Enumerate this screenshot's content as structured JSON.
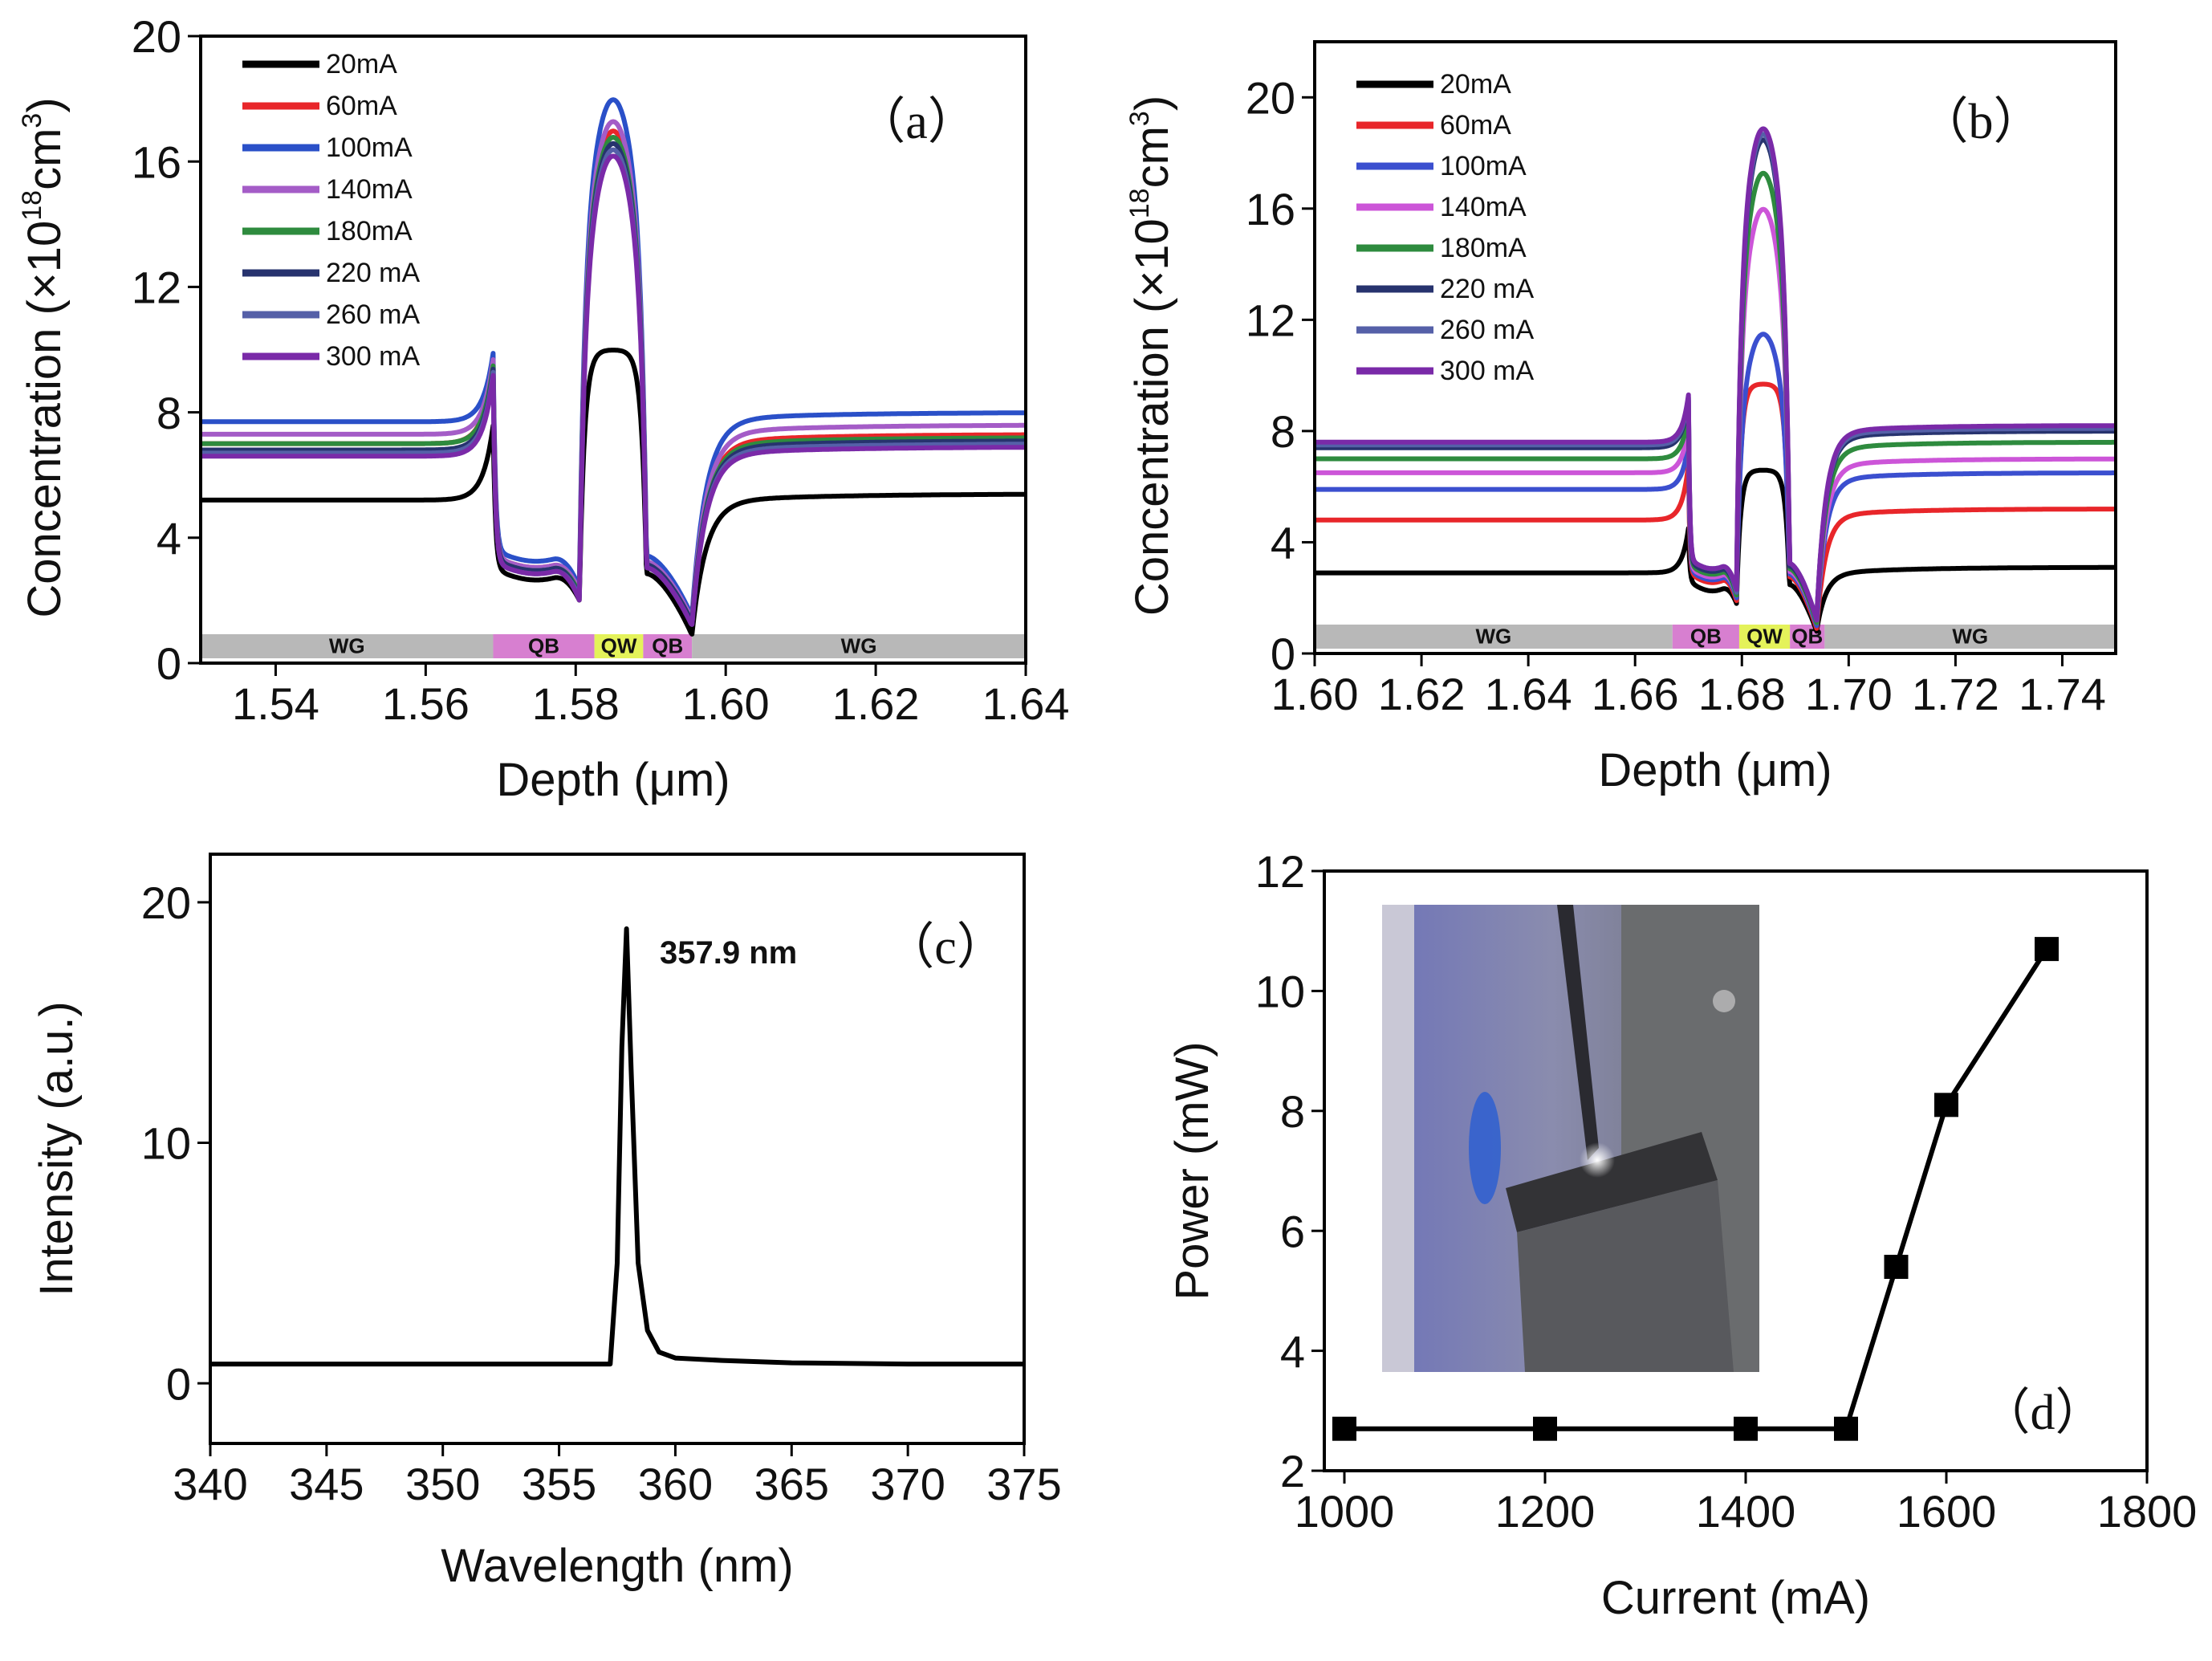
{
  "chart_data": [
    {
      "panel": "a",
      "type": "line",
      "panel_label": "（a）",
      "xlabel": "Depth (μm)",
      "ylabel_prefix": "Concentration (×10",
      "ylabel_exp1": "18",
      "ylabel_mid": "cm",
      "ylabel_exp2": "3",
      "ylabel_suffix": ")",
      "xlim": [
        1.53,
        1.64
      ],
      "ylim": [
        0,
        20
      ],
      "xticks": [
        "1.54",
        "1.56",
        "1.58",
        "1.60",
        "1.62",
        "1.64"
      ],
      "xtick_values": [
        1.54,
        1.56,
        1.58,
        1.6,
        1.62,
        1.64
      ],
      "yticks": [
        "0",
        "4",
        "8",
        "12",
        "16",
        "20"
      ],
      "ytick_values": [
        0,
        4,
        8,
        12,
        16,
        20
      ],
      "legend_position": "top-left",
      "regions": [
        {
          "label": "WG",
          "x0": 1.53,
          "x1": 1.569,
          "color": "#b8b8b8"
        },
        {
          "label": "QB",
          "x0": 1.569,
          "x1": 1.5825,
          "color": "#d77fd0"
        },
        {
          "label": "QW",
          "x0": 1.5825,
          "x1": 1.589,
          "color": "#e4f25a"
        },
        {
          "label": "QB",
          "x0": 1.589,
          "x1": 1.5955,
          "color": "#d77fd0"
        },
        {
          "label": "WG",
          "x0": 1.5955,
          "x1": 1.64,
          "color": "#b8b8b8"
        }
      ],
      "profile": {
        "edges": [
          1.569,
          1.5805,
          1.5895,
          1.5955
        ],
        "x_start": 1.53,
        "x_end": 1.64
      },
      "series": [
        {
          "name": "20mA",
          "color": "#000000",
          "left": 5.2,
          "right": 5.4,
          "spike": 7.6,
          "barrier": 3.0,
          "dip": 2.0,
          "qw_peak": 10.0,
          "dip2": 0.9,
          "flat_top": true
        },
        {
          "name": "60mA",
          "color": "#e8262a",
          "left": 7.0,
          "right": 7.3,
          "spike": 9.6,
          "barrier": 3.4,
          "dip": 2.2,
          "qw_peak": 17.0,
          "dip2": 1.3
        },
        {
          "name": "100mA",
          "color": "#2a50c8",
          "left": 7.7,
          "right": 8.0,
          "spike": 9.9,
          "barrier": 3.6,
          "dip": 2.4,
          "qw_peak": 18.0,
          "dip2": 1.5
        },
        {
          "name": "140mA",
          "color": "#a45cc7",
          "left": 7.3,
          "right": 7.6,
          "spike": 9.7,
          "barrier": 3.4,
          "dip": 2.3,
          "qw_peak": 17.3,
          "dip2": 1.4
        },
        {
          "name": "180mA",
          "color": "#2e8b3e",
          "left": 7.0,
          "right": 7.2,
          "spike": 9.5,
          "barrier": 3.3,
          "dip": 2.2,
          "qw_peak": 16.8,
          "dip2": 1.3
        },
        {
          "name": "220 mA",
          "color": "#27336e",
          "left": 6.8,
          "right": 7.1,
          "spike": 9.4,
          "barrier": 3.3,
          "dip": 2.1,
          "qw_peak": 16.6,
          "dip2": 1.3
        },
        {
          "name": "260 mA",
          "color": "#5560a8",
          "left": 6.7,
          "right": 7.0,
          "spike": 9.3,
          "barrier": 3.2,
          "dip": 2.1,
          "qw_peak": 16.4,
          "dip2": 1.2
        },
        {
          "name": "300 mA",
          "color": "#7a2aa8",
          "left": 6.6,
          "right": 6.9,
          "spike": 9.2,
          "barrier": 3.2,
          "dip": 2.0,
          "qw_peak": 16.2,
          "dip2": 1.2
        }
      ]
    },
    {
      "panel": "b",
      "type": "line",
      "panel_label": "（b）",
      "xlabel": "Depth (μm)",
      "ylabel_prefix": "Concentration (×10",
      "ylabel_exp1": "18",
      "ylabel_mid": "cm",
      "ylabel_exp2": "3",
      "ylabel_suffix": ")",
      "xlim": [
        1.6,
        1.75
      ],
      "ylim": [
        0,
        22
      ],
      "xticks": [
        "1.60",
        "1.62",
        "1.64",
        "1.66",
        "1.68",
        "1.70",
        "1.72",
        "1.74"
      ],
      "xtick_values": [
        1.6,
        1.62,
        1.64,
        1.66,
        1.68,
        1.7,
        1.72,
        1.74
      ],
      "yticks": [
        "0",
        "4",
        "8",
        "12",
        "16",
        "20"
      ],
      "ytick_values": [
        0,
        4,
        8,
        12,
        16,
        20
      ],
      "legend_position": "top-left",
      "regions": [
        {
          "label": "WG",
          "x0": 1.6,
          "x1": 1.667,
          "color": "#b8b8b8"
        },
        {
          "label": "QB",
          "x0": 1.667,
          "x1": 1.6795,
          "color": "#d77fd0"
        },
        {
          "label": "QW",
          "x0": 1.6795,
          "x1": 1.689,
          "color": "#e4f25a"
        },
        {
          "label": "QB",
          "x0": 1.689,
          "x1": 1.6955,
          "color": "#d77fd0"
        },
        {
          "label": "WG",
          "x0": 1.6955,
          "x1": 1.75,
          "color": "#b8b8b8"
        }
      ],
      "profile": {
        "edges": [
          1.67,
          1.679,
          1.689,
          1.694
        ],
        "x_start": 1.6,
        "x_end": 1.75
      },
      "series": [
        {
          "name": "20mA",
          "color": "#000000",
          "left": 2.9,
          "right": 3.1,
          "spike": 4.5,
          "barrier": 2.6,
          "dip": 1.8,
          "qw_peak": 6.6,
          "dip2": 0.8,
          "flat_top": true
        },
        {
          "name": "60mA",
          "color": "#e8262a",
          "left": 4.8,
          "right": 5.2,
          "spike": 6.8,
          "barrier": 2.9,
          "dip": 1.9,
          "qw_peak": 9.7,
          "dip2": 0.9,
          "flat_top": true
        },
        {
          "name": "100mA",
          "color": "#3b4fcf",
          "left": 5.9,
          "right": 6.5,
          "spike": 7.6,
          "barrier": 3.0,
          "dip": 2.0,
          "qw_peak": 11.5,
          "dip2": 1.0
        },
        {
          "name": "140mA",
          "color": "#cc55d8",
          "left": 6.5,
          "right": 7.0,
          "spike": 8.2,
          "barrier": 3.1,
          "dip": 2.1,
          "qw_peak": 16.0,
          "dip2": 1.1
        },
        {
          "name": "180mA",
          "color": "#2e8b3e",
          "left": 7.0,
          "right": 7.6,
          "spike": 8.6,
          "barrier": 3.2,
          "dip": 2.1,
          "qw_peak": 17.3,
          "dip2": 1.1
        },
        {
          "name": "220 mA",
          "color": "#27336e",
          "left": 7.4,
          "right": 8.0,
          "spike": 9.1,
          "barrier": 3.3,
          "dip": 2.2,
          "qw_peak": 18.5,
          "dip2": 1.2
        },
        {
          "name": "260 mA",
          "color": "#5560a8",
          "left": 7.5,
          "right": 8.1,
          "spike": 9.2,
          "barrier": 3.4,
          "dip": 2.2,
          "qw_peak": 18.7,
          "dip2": 1.2
        },
        {
          "name": "300 mA",
          "color": "#7a2aa8",
          "left": 7.6,
          "right": 8.2,
          "spike": 9.3,
          "barrier": 3.4,
          "dip": 2.3,
          "qw_peak": 18.9,
          "dip2": 1.2
        }
      ]
    },
    {
      "panel": "c",
      "type": "line",
      "panel_label": "（c）",
      "xlabel": "Wavelength (nm)",
      "ylabel": "Intensity (a.u.)",
      "xlim": [
        340,
        375
      ],
      "ylim": [
        -2.5,
        22
      ],
      "xticks": [
        "340",
        "345",
        "350",
        "355",
        "360",
        "365",
        "370",
        "375"
      ],
      "xtick_values": [
        340,
        345,
        350,
        355,
        360,
        365,
        370,
        375
      ],
      "yticks": [
        "0",
        "10",
        "20"
      ],
      "ytick_values": [
        0,
        10,
        20
      ],
      "peak_annotation": "357.9 nm",
      "series": [
        {
          "name": "",
          "color": "#000000",
          "x": [
            340,
            345,
            350,
            355,
            357.2,
            357.5,
            357.7,
            357.9,
            358.1,
            358.4,
            358.8,
            359.3,
            360,
            362,
            365,
            370,
            375
          ],
          "y": [
            0.8,
            0.8,
            0.8,
            0.8,
            0.8,
            5.0,
            14.0,
            18.9,
            13.0,
            5.0,
            2.2,
            1.3,
            1.05,
            0.95,
            0.85,
            0.8,
            0.8
          ]
        }
      ]
    },
    {
      "panel": "d",
      "type": "line",
      "panel_label": "（d）",
      "xlabel": "Current (mA)",
      "ylabel": "Power (mW)",
      "xlim": [
        980,
        1800
      ],
      "ylim": [
        2,
        12
      ],
      "xticks": [
        "1000",
        "1200",
        "1400",
        "1600",
        "1800"
      ],
      "xtick_values": [
        1000,
        1200,
        1400,
        1600,
        1800
      ],
      "yticks": [
        "2",
        "4",
        "6",
        "8",
        "10",
        "12"
      ],
      "ytick_values": [
        2,
        4,
        6,
        8,
        10,
        12
      ],
      "marker": "square",
      "inset": "photo",
      "series": [
        {
          "name": "",
          "color": "#000000",
          "x": [
            1000,
            1200,
            1400,
            1500,
            1550,
            1600,
            1700
          ],
          "y": [
            2.7,
            2.7,
            2.7,
            2.7,
            5.4,
            8.1,
            10.7
          ]
        }
      ]
    }
  ]
}
